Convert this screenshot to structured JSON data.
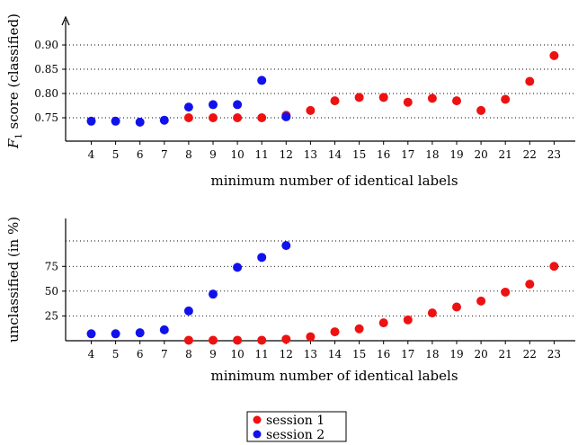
{
  "chart_data": [
    {
      "type": "scatter",
      "ylabel_main": "F",
      "ylabel_sub": "1",
      "ylabel_rest": " score (classified)",
      "xlabel": "minimum number of identical labels",
      "ylim": [
        0.7,
        0.92
      ],
      "yticks": [
        "0.90",
        "0.85",
        "0.80",
        "0.75"
      ],
      "grid": "horizontal-dotted",
      "categories": [
        "4",
        "5",
        "6",
        "7",
        "8",
        "9",
        "10",
        "11",
        "12",
        "13",
        "14",
        "15",
        "16",
        "17",
        "18",
        "19",
        "20",
        "21",
        "22",
        "23"
      ],
      "series": [
        {
          "name": "session 1",
          "color": "#ee1111",
          "points": [
            [
              8,
              0.75
            ],
            [
              9,
              0.75
            ],
            [
              10,
              0.75
            ],
            [
              11,
              0.75
            ],
            [
              12,
              0.755
            ],
            [
              13,
              0.765
            ],
            [
              14,
              0.785
            ],
            [
              15,
              0.792
            ],
            [
              16,
              0.792
            ],
            [
              17,
              0.782
            ],
            [
              18,
              0.79
            ],
            [
              19,
              0.785
            ],
            [
              20,
              0.765
            ],
            [
              21,
              0.788
            ],
            [
              22,
              0.825
            ],
            [
              23,
              0.878
            ]
          ]
        },
        {
          "name": "session 2",
          "color": "#1111ee",
          "points": [
            [
              4,
              0.743
            ],
            [
              5,
              0.743
            ],
            [
              6,
              0.741
            ],
            [
              7,
              0.745
            ],
            [
              8,
              0.772
            ],
            [
              9,
              0.777
            ],
            [
              10,
              0.777
            ],
            [
              11,
              0.827
            ],
            [
              12,
              0.752
            ]
          ]
        }
      ]
    },
    {
      "type": "scatter",
      "ylabel": "unclassified (in %)",
      "xlabel": "minimum number of identical labels",
      "ylim": [
        0,
        110
      ],
      "yticks": [
        "75",
        "50",
        "25"
      ],
      "grid": "horizontal-dotted",
      "categories": [
        "4",
        "5",
        "6",
        "7",
        "8",
        "9",
        "10",
        "11",
        "12",
        "13",
        "14",
        "15",
        "16",
        "17",
        "18",
        "19",
        "20",
        "21",
        "22",
        "23"
      ],
      "series": [
        {
          "name": "session 1",
          "color": "#ee1111",
          "points": [
            [
              8,
              0.5
            ],
            [
              9,
              0.5
            ],
            [
              10,
              0.5
            ],
            [
              11,
              0.5
            ],
            [
              12,
              1.5
            ],
            [
              13,
              4
            ],
            [
              14,
              9
            ],
            [
              15,
              12
            ],
            [
              16,
              18
            ],
            [
              17,
              21
            ],
            [
              18,
              28
            ],
            [
              19,
              34
            ],
            [
              20,
              40
            ],
            [
              21,
              49
            ],
            [
              22,
              57
            ],
            [
              23,
              75
            ]
          ]
        },
        {
          "name": "session 2",
          "color": "#1111ee",
          "points": [
            [
              4,
              7
            ],
            [
              5,
              7
            ],
            [
              6,
              8
            ],
            [
              7,
              11
            ],
            [
              8,
              30
            ],
            [
              9,
              47
            ],
            [
              10,
              74
            ],
            [
              11,
              84
            ],
            [
              12,
              96
            ]
          ]
        }
      ]
    }
  ],
  "legend": [
    {
      "label": "session 1",
      "color": "#ee1111"
    },
    {
      "label": "session 2",
      "color": "#1111ee"
    }
  ]
}
